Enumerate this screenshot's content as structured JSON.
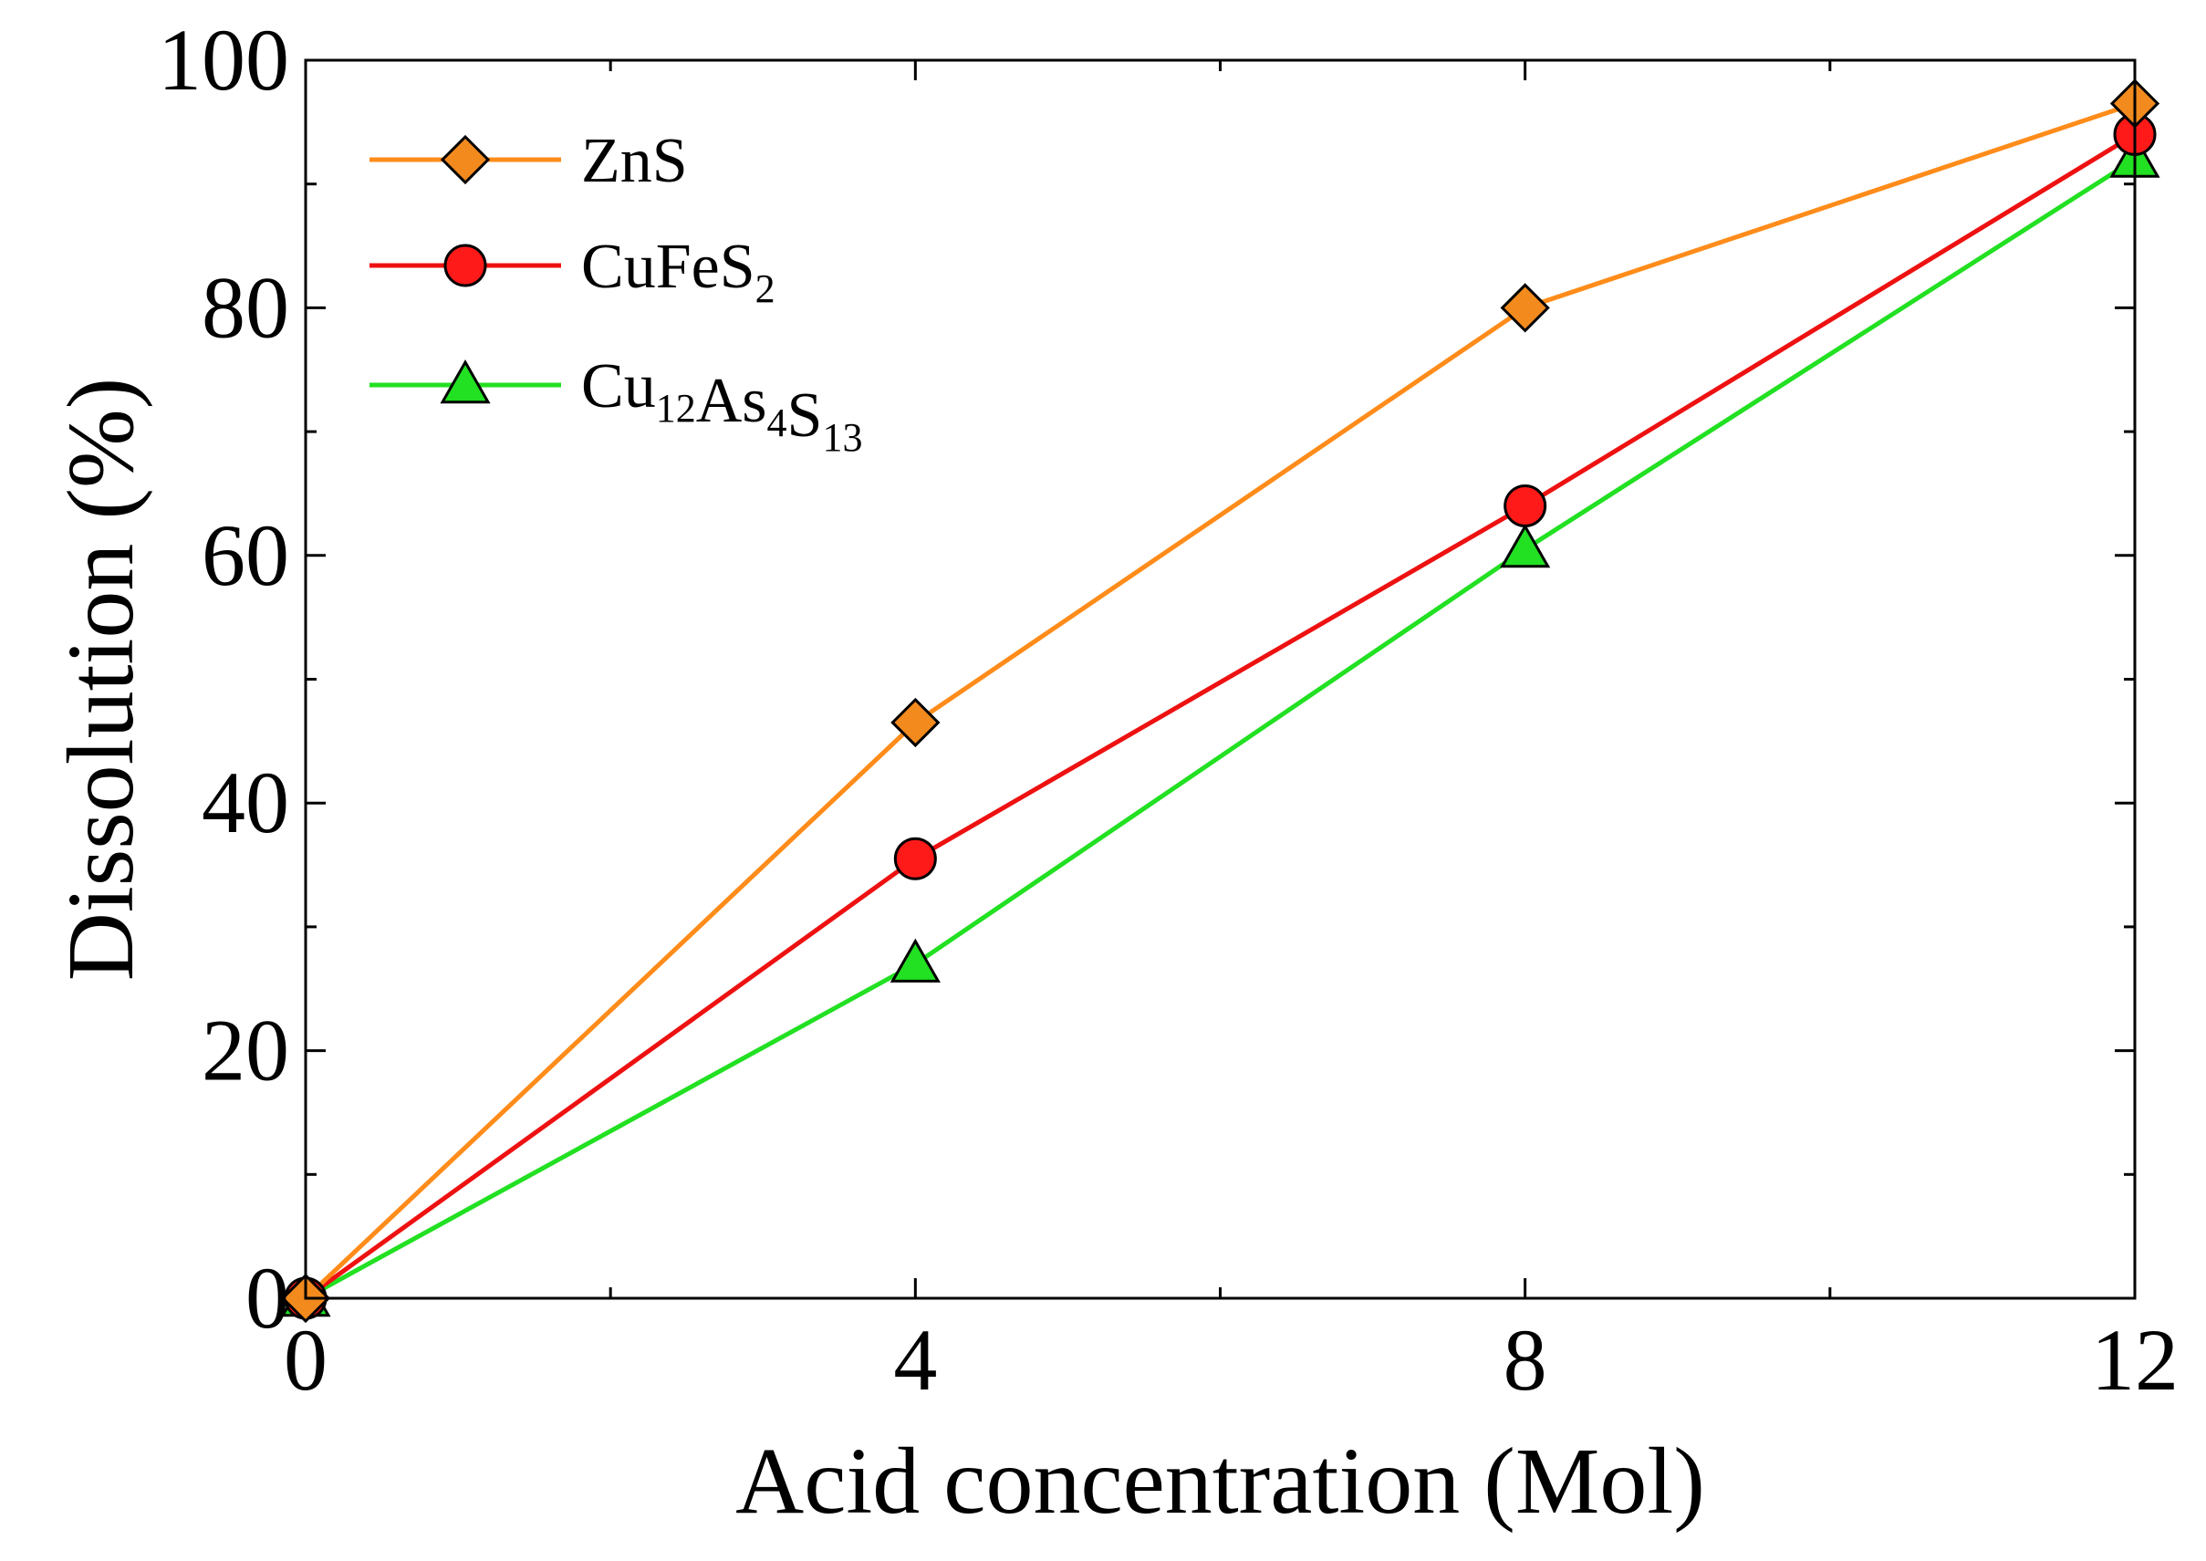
{
  "chart_data": {
    "type": "line",
    "title": "",
    "xlabel": "Acid concentration (Mol)",
    "ylabel": "Dissolution (%)",
    "xlim": [
      0,
      12
    ],
    "ylim": [
      0,
      100
    ],
    "xticks": [
      0,
      4,
      8,
      12
    ],
    "xtick_labels": [
      "0",
      "4",
      "8",
      "12"
    ],
    "yticks": [
      0,
      20,
      40,
      60,
      80,
      100
    ],
    "ytick_labels": [
      "0",
      "20",
      "40",
      "60",
      "80",
      "100"
    ],
    "legend_position": "top-left",
    "x": [
      0,
      4,
      8,
      12
    ],
    "series": [
      {
        "name": "ZnS",
        "legend": {
          "base": "ZnS",
          "parts": []
        },
        "marker": "diamond",
        "line_color": "#ff8c1a",
        "marker_color": "#f28a1e",
        "values": [
          0,
          46.5,
          80,
          96.5
        ]
      },
      {
        "name": "CuFeS2",
        "legend": {
          "base": "",
          "parts": [
            [
              "CuFeS",
              "2"
            ]
          ]
        },
        "marker": "circle",
        "line_color": "#ee1111",
        "marker_color": "#ff1a1a",
        "values": [
          0,
          35.5,
          64,
          94
        ]
      },
      {
        "name": "Cu12As4S13",
        "legend": {
          "base": "",
          "parts": [
            [
              "Cu",
              "12"
            ],
            [
              "As",
              "4"
            ],
            [
              "S",
              "13"
            ]
          ]
        },
        "marker": "triangle",
        "line_color": "#22e022",
        "marker_color": "#22e022",
        "values": [
          0,
          27,
          60.5,
          92
        ]
      }
    ]
  }
}
